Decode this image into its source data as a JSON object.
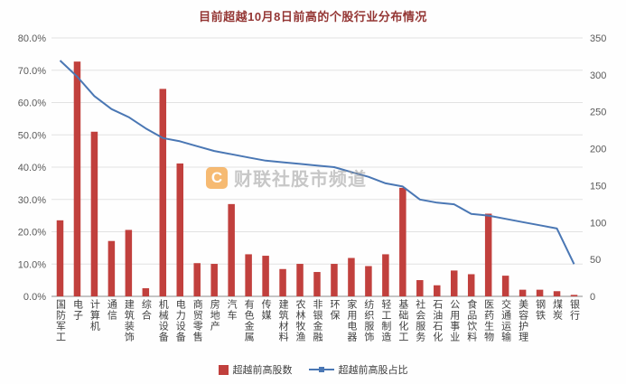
{
  "chart_data": {
    "type": "bar",
    "title": "目前超越10月8日前高的个股行业分布情况",
    "categories": [
      "国防军工",
      "电子",
      "计算机",
      "通信",
      "建筑装饰",
      "综合",
      "机械设备",
      "电力设备",
      "商贸零售",
      "房地产",
      "汽车",
      "有色金属",
      "传媒",
      "建筑材料",
      "农林牧渔",
      "非银金融",
      "环保",
      "家用电器",
      "纺织服饰",
      "轻工制造",
      "基础化工",
      "社会服务",
      "石油石化",
      "公用事业",
      "食品饮料",
      "医药生物",
      "交通运输",
      "美容护理",
      "钢铁",
      "煤炭",
      "银行"
    ],
    "series": [
      {
        "name": "超越前高股数",
        "type": "bar",
        "axis": "right",
        "color": "#c1403d",
        "values": [
          103,
          318,
          223,
          75,
          90,
          11,
          281,
          180,
          45,
          44,
          125,
          57,
          55,
          37,
          44,
          33,
          44,
          52,
          41,
          57,
          147,
          22,
          15,
          35,
          30,
          112,
          28,
          9,
          9,
          7,
          2
        ]
      },
      {
        "name": "超越前高股占比",
        "type": "line",
        "axis": "left",
        "color": "#4a77b4",
        "values": [
          73,
          68,
          62,
          58,
          55.5,
          52,
          49,
          48,
          46.5,
          45,
          44,
          43,
          42,
          41.5,
          41,
          40.5,
          40,
          38.5,
          37,
          35,
          34,
          30,
          29,
          28.5,
          25.5,
          25,
          24,
          23,
          22,
          21,
          10
        ]
      }
    ],
    "left_axis": {
      "min": 0,
      "max": 80,
      "step": 10,
      "format": "percent",
      "ticks": [
        "0.0%",
        "10.0%",
        "20.0%",
        "30.0%",
        "40.0%",
        "50.0%",
        "60.0%",
        "70.0%",
        "80.0%"
      ]
    },
    "right_axis": {
      "min": 0,
      "max": 350,
      "step": 50,
      "ticks": [
        "0",
        "50",
        "100",
        "150",
        "200",
        "250",
        "300",
        "350"
      ]
    },
    "grid": true,
    "legend_position": "bottom"
  },
  "watermark": {
    "logo": "C",
    "text": "财联社股市频道",
    "logo_color": "#f08300"
  }
}
